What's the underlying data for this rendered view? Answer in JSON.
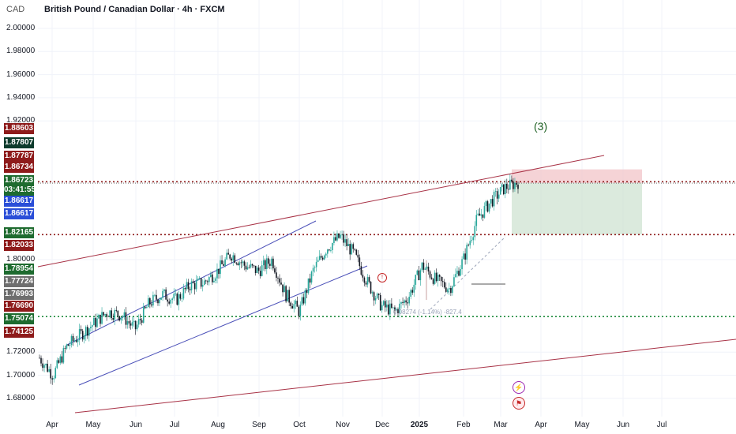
{
  "header": {
    "currency": "CAD",
    "title": "British Pound / Canadian Dollar · 4h · FXCM"
  },
  "price_axis": {
    "labels": [
      "2.00000",
      "1.98000",
      "1.96000",
      "1.94000",
      "1.92000",
      "1.80000",
      "1.72000",
      "1.70000",
      "1.68000"
    ]
  },
  "price_tags": [
    {
      "text": "1.88603",
      "color": "#8e1b1b"
    },
    {
      "text": "1.87807",
      "color": "#0d3b2c"
    },
    {
      "text": "1.87787",
      "color": "#8e1b1b"
    },
    {
      "text": "1.86734",
      "color": "#8e1b1b"
    },
    {
      "text": "1.86723",
      "color": "#1e6b2f"
    },
    {
      "text": "03:41:55",
      "color": "#1e6b2f"
    },
    {
      "text": "1.86617",
      "color": "#2a4ed8"
    },
    {
      "text": "1.86617",
      "color": "#2a4ed8"
    },
    {
      "text": "1.82165",
      "color": "#1e6b2f"
    },
    {
      "text": "1.82033",
      "color": "#8e1b1b"
    },
    {
      "text": "1.78954",
      "color": "#1e6b2f"
    },
    {
      "text": "1.77724",
      "color": "#6e6e6e"
    },
    {
      "text": "1.76993",
      "color": "#6e6e6e"
    },
    {
      "text": "1.76690",
      "color": "#8e1b1b"
    },
    {
      "text": "1.75074",
      "color": "#1e6b2f"
    },
    {
      "text": "1.74125",
      "color": "#8e1b1b"
    }
  ],
  "time_axis": {
    "labels": [
      {
        "text": "Apr",
        "bold": false
      },
      {
        "text": "May",
        "bold": false
      },
      {
        "text": "Jun",
        "bold": false
      },
      {
        "text": "Jul",
        "bold": false
      },
      {
        "text": "Aug",
        "bold": false
      },
      {
        "text": "Sep",
        "bold": false
      },
      {
        "text": "Oct",
        "bold": false
      },
      {
        "text": "Nov",
        "bold": false
      },
      {
        "text": "Dec",
        "bold": false
      },
      {
        "text": "2025",
        "bold": true
      },
      {
        "text": "Feb",
        "bold": false
      },
      {
        "text": "Mar",
        "bold": false
      },
      {
        "text": "Apr",
        "bold": false
      },
      {
        "text": "May",
        "bold": false
      },
      {
        "text": "Jun",
        "bold": false
      },
      {
        "text": "Jul",
        "bold": false
      }
    ]
  },
  "annotations": {
    "wave_label": "(3)",
    "fib_text": "0.08274 (-1.14%) -827.4",
    "bolt_icon": "bolt-icon",
    "flag_icon": "flag-icon",
    "news_icon": "news-icon"
  },
  "colors": {
    "up_candle": "#26a69a",
    "down_candle": "#131722",
    "channel": "#4a4fb8",
    "trendline": "#a83246",
    "resistance": "#8e1b1b",
    "support": "#1e8a3c",
    "stop_zone": "#f2c4c8",
    "target_zone": "#cfe3d2"
  },
  "chart_data": {
    "type": "candlestick",
    "symbol": "GBPCAD",
    "timeframe": "4h",
    "x": [
      "2024-04",
      "2024-05",
      "2024-06",
      "2024-07",
      "2024-08",
      "2024-09",
      "2024-10",
      "2024-11",
      "2024-12",
      "2025-01",
      "2025-02",
      "2025-03",
      "2025-04",
      "2025-05",
      "2025-06",
      "2025-07"
    ],
    "close_path": [
      1.715,
      1.7,
      1.725,
      1.735,
      1.745,
      1.755,
      1.752,
      1.74,
      1.762,
      1.77,
      1.765,
      1.778,
      1.78,
      1.79,
      1.805,
      1.795,
      1.79,
      1.8,
      1.77,
      1.755,
      1.79,
      1.81,
      1.82,
      1.805,
      1.78,
      1.76,
      1.755,
      1.768,
      1.795,
      1.782,
      1.775,
      1.8,
      1.835,
      1.85,
      1.862,
      1.867
    ],
    "horizontal_levels": [
      1.86734,
      1.82165,
      1.75074
    ],
    "position": {
      "entry": 1.86617,
      "stop": 1.87807,
      "target": 1.82165
    },
    "ylim": [
      1.66,
      2.01
    ]
  }
}
